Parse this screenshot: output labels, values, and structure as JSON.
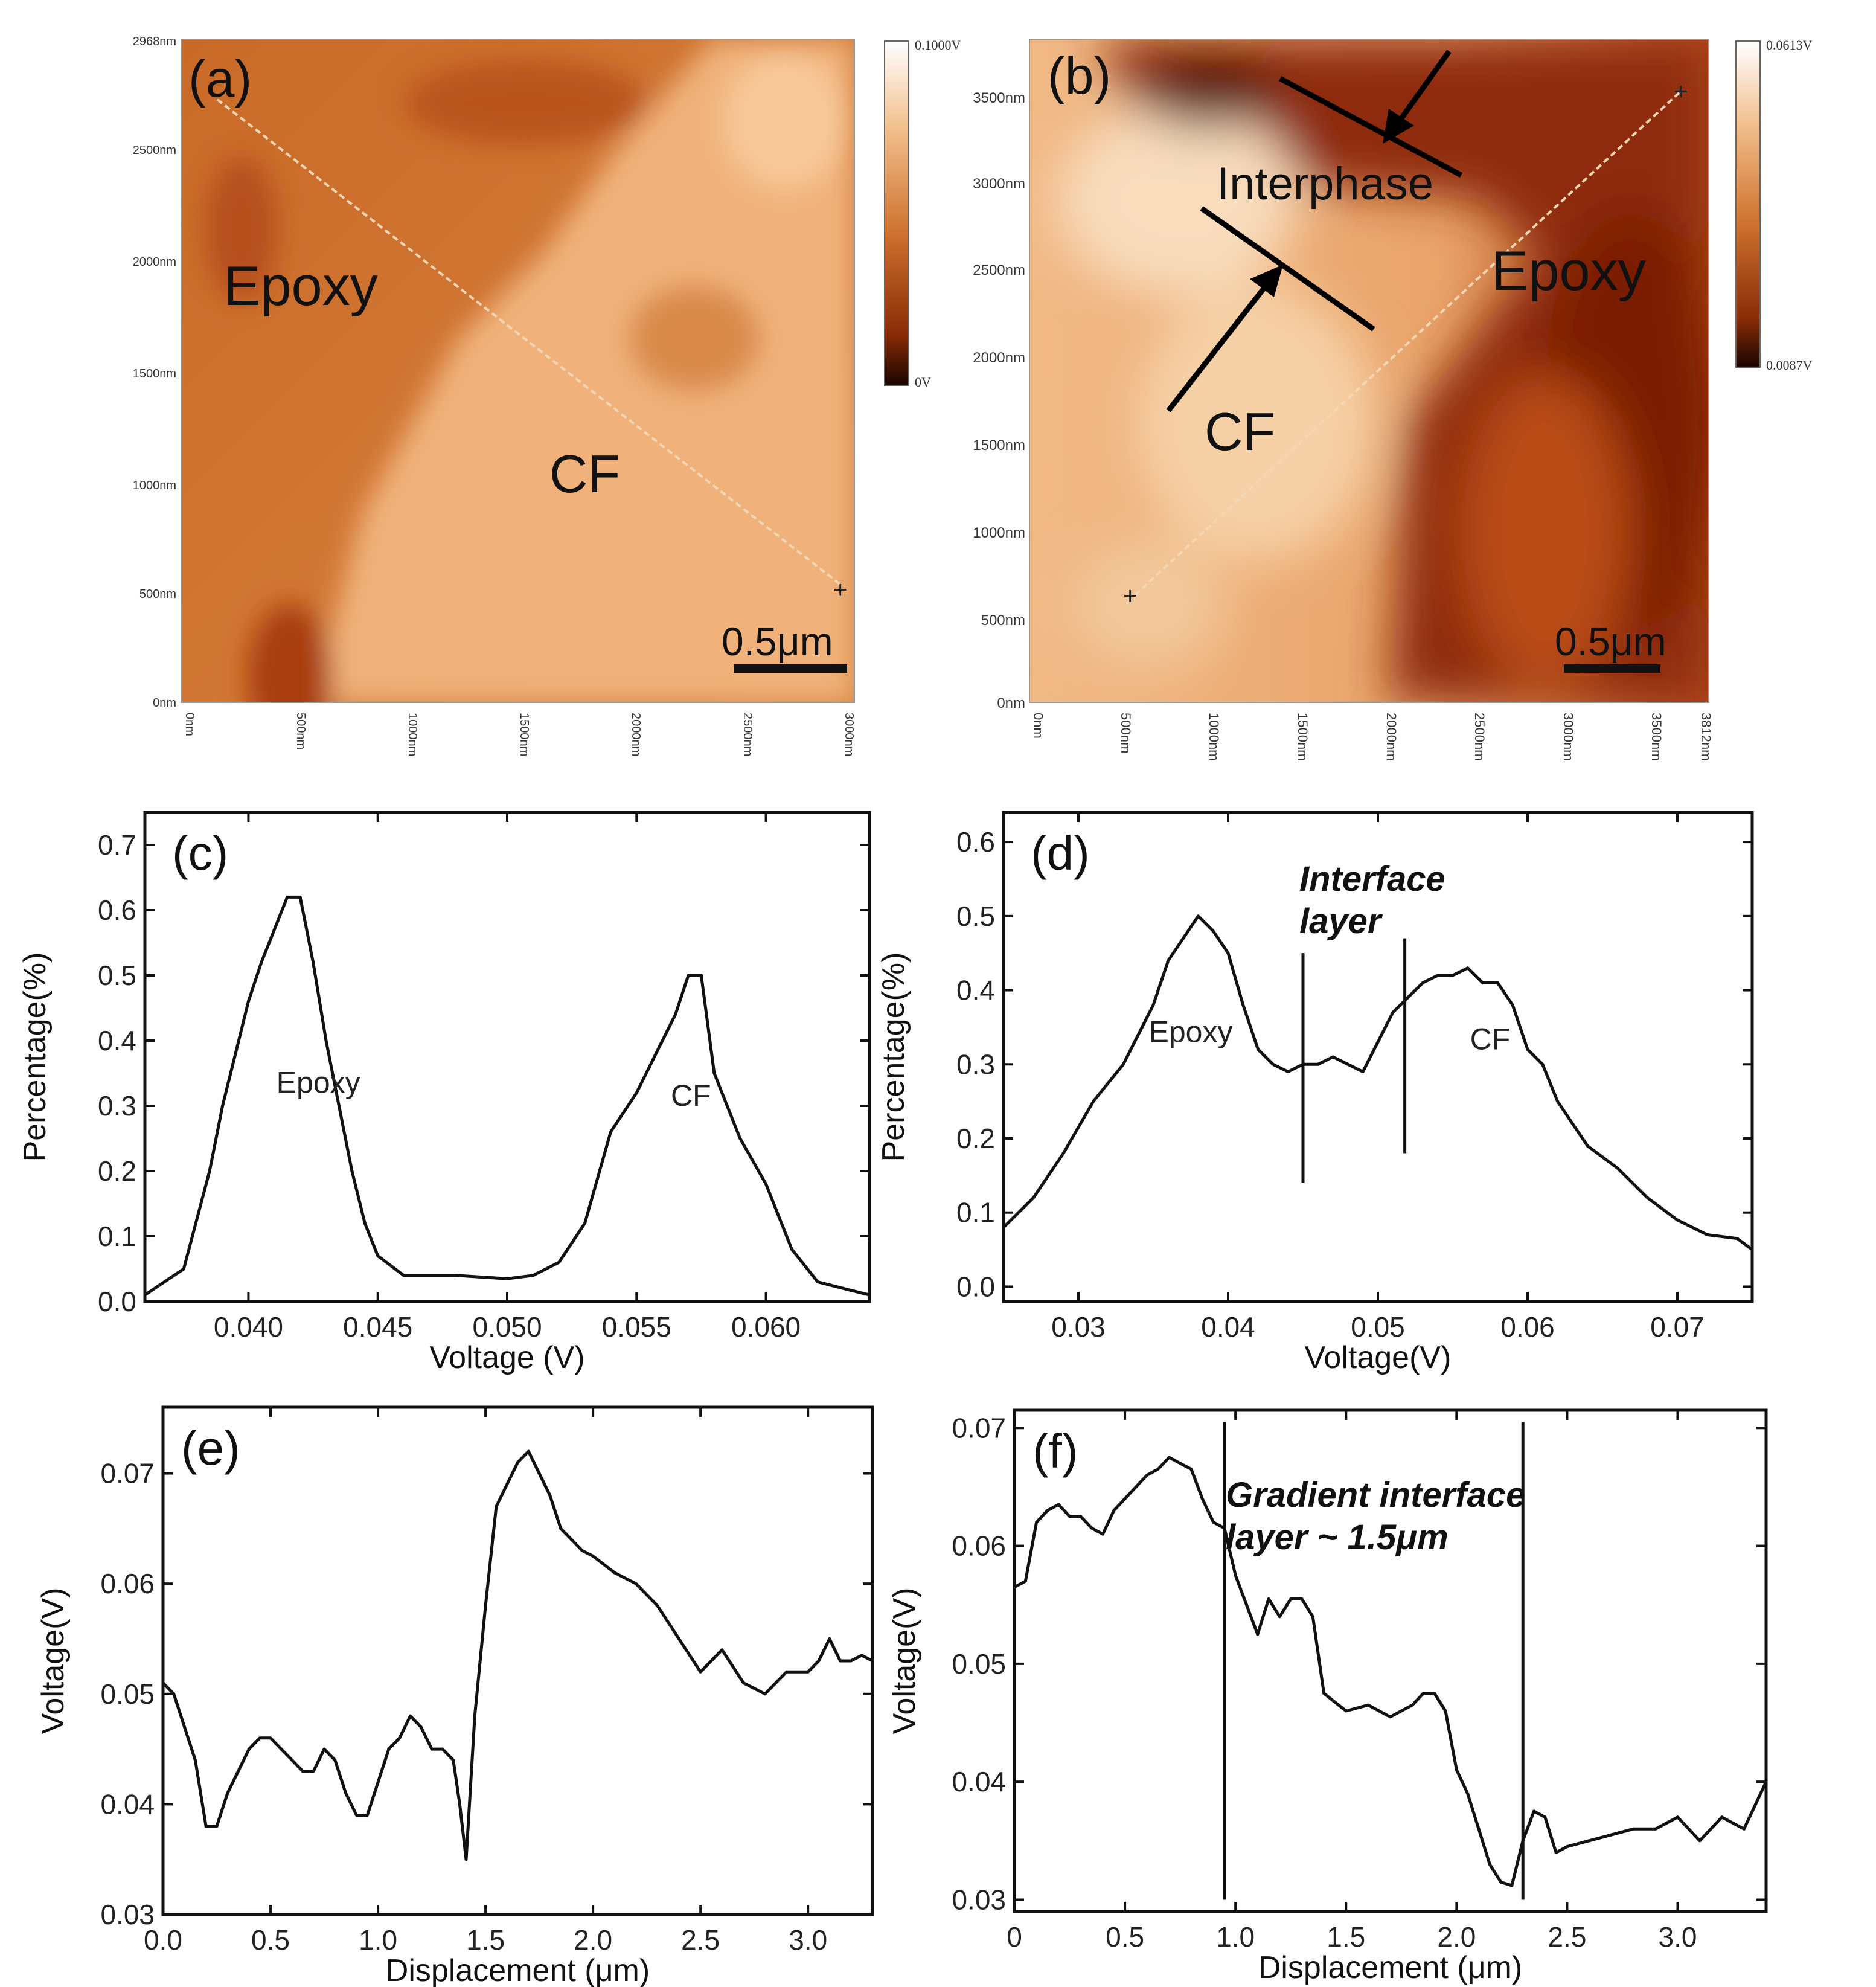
{
  "figure": {
    "panels": {
      "a": {
        "label": "(a)",
        "regions": [
          "Epoxy",
          "CF"
        ],
        "scalebar": "0.5μm",
        "y_ticks": [
          "2968nm",
          "2500nm",
          "2000nm",
          "1500nm",
          "1000nm",
          "500nm",
          "0nm"
        ],
        "x_ticks": [
          "0nm",
          "500nm",
          "1000nm",
          "1500nm",
          "2000nm",
          "2500nm",
          "3000nm"
        ],
        "colorbar": {
          "max": "0.1000V",
          "min": "0V"
        }
      },
      "b": {
        "label": "(b)",
        "regions": [
          "Interphase",
          "Epoxy",
          "CF"
        ],
        "scalebar": "0.5μm",
        "y_ticks": [
          "3500nm",
          "3000nm",
          "2500nm",
          "2000nm",
          "1500nm",
          "1000nm",
          "500nm",
          "0nm"
        ],
        "x_ticks": [
          "0nm",
          "500nm",
          "1000nm",
          "1500nm",
          "2000nm",
          "2500nm",
          "3000nm",
          "3500nm",
          "3812nm"
        ],
        "colorbar": {
          "max": "0.0613V",
          "min": "0.0087V"
        }
      }
    },
    "colors": {
      "light": "#fce8cc",
      "mid": "#d98c4a",
      "dark": "#6e1a02",
      "line": "#111111"
    }
  },
  "chart_data": [
    {
      "id": "c",
      "type": "line",
      "label": "(c)",
      "xlabel": "Voltage (V)",
      "ylabel": "Percentage(%)",
      "xlim": [
        0.036,
        0.064
      ],
      "ylim": [
        0,
        0.75
      ],
      "xticks": [
        0.04,
        0.045,
        0.05,
        0.055,
        0.06
      ],
      "xtick_labels": [
        "0.040",
        "0.045",
        "0.050",
        "0.055",
        "0.060"
      ],
      "yticks": [
        0,
        0.1,
        0.2,
        0.3,
        0.4,
        0.5,
        0.6,
        0.7
      ],
      "ytick_labels": [
        "0.0",
        "0.1",
        "0.2",
        "0.3",
        "0.4",
        "0.5",
        "0.6",
        "0.7"
      ],
      "annotations": [
        {
          "text": "Epoxy",
          "x": 0.0427,
          "y": 0.32
        },
        {
          "text": "CF",
          "x": 0.0571,
          "y": 0.3
        }
      ],
      "vlines": [],
      "vline_labels": [],
      "series": [
        {
          "name": "histogram",
          "x": [
            0.036,
            0.0375,
            0.0385,
            0.039,
            0.0395,
            0.04,
            0.0405,
            0.041,
            0.0415,
            0.042,
            0.0425,
            0.043,
            0.0435,
            0.044,
            0.0445,
            0.045,
            0.046,
            0.048,
            0.05,
            0.051,
            0.052,
            0.053,
            0.054,
            0.055,
            0.0555,
            0.056,
            0.0565,
            0.057,
            0.0575,
            0.058,
            0.0585,
            0.059,
            0.06,
            0.061,
            0.062,
            0.063,
            0.064
          ],
          "y": [
            0.01,
            0.05,
            0.2,
            0.3,
            0.38,
            0.46,
            0.52,
            0.57,
            0.62,
            0.62,
            0.52,
            0.4,
            0.3,
            0.2,
            0.12,
            0.07,
            0.04,
            0.04,
            0.035,
            0.04,
            0.06,
            0.12,
            0.26,
            0.32,
            0.36,
            0.4,
            0.44,
            0.5,
            0.5,
            0.35,
            0.3,
            0.25,
            0.18,
            0.08,
            0.03,
            0.02,
            0.01
          ]
        }
      ]
    },
    {
      "id": "d",
      "type": "line",
      "label": "(d)",
      "xlabel": "Voltage(V)",
      "ylabel": "Percentage(%)",
      "xlim": [
        0.025,
        0.075
      ],
      "ylim": [
        -0.02,
        0.64
      ],
      "xticks": [
        0.03,
        0.04,
        0.05,
        0.06,
        0.07
      ],
      "xtick_labels": [
        "0.03",
        "0.04",
        "0.05",
        "0.06",
        "0.07"
      ],
      "yticks": [
        0,
        0.1,
        0.2,
        0.3,
        0.4,
        0.5,
        0.6
      ],
      "ytick_labels": [
        "0.0",
        "0.1",
        "0.2",
        "0.3",
        "0.4",
        "0.5",
        "0.6"
      ],
      "annotations": [
        {
          "text": "Epoxy",
          "x": 0.0375,
          "y": 0.33
        },
        {
          "text": "CF",
          "x": 0.0575,
          "y": 0.32
        }
      ],
      "vlines": [
        {
          "x": 0.045,
          "y0": 0.14,
          "y1": 0.45
        },
        {
          "x": 0.0518,
          "y0": 0.18,
          "y1": 0.47
        }
      ],
      "vline_labels": [
        "Interface",
        "layer"
      ],
      "series": [
        {
          "name": "histogram",
          "x": [
            0.025,
            0.027,
            0.029,
            0.031,
            0.033,
            0.035,
            0.036,
            0.037,
            0.038,
            0.039,
            0.04,
            0.041,
            0.042,
            0.043,
            0.044,
            0.045,
            0.046,
            0.047,
            0.048,
            0.049,
            0.05,
            0.051,
            0.052,
            0.053,
            0.054,
            0.055,
            0.056,
            0.057,
            0.058,
            0.059,
            0.06,
            0.061,
            0.062,
            0.064,
            0.066,
            0.068,
            0.07,
            0.072,
            0.074,
            0.075
          ],
          "y": [
            0.08,
            0.12,
            0.18,
            0.25,
            0.3,
            0.38,
            0.44,
            0.47,
            0.5,
            0.48,
            0.45,
            0.38,
            0.32,
            0.3,
            0.29,
            0.3,
            0.3,
            0.31,
            0.3,
            0.29,
            0.33,
            0.37,
            0.39,
            0.41,
            0.42,
            0.42,
            0.43,
            0.41,
            0.41,
            0.38,
            0.32,
            0.3,
            0.25,
            0.19,
            0.16,
            0.12,
            0.09,
            0.07,
            0.065,
            0.05
          ]
        }
      ]
    },
    {
      "id": "e",
      "type": "line",
      "label": "(e)",
      "xlabel": "Displacement (μm)",
      "ylabel": "Voltage(V)",
      "xlim": [
        0,
        3.3
      ],
      "ylim": [
        0.03,
        0.076
      ],
      "xticks": [
        0,
        0.5,
        1.0,
        1.5,
        2.0,
        2.5,
        3.0
      ],
      "xtick_labels": [
        "0.0",
        "0.5",
        "1.0",
        "1.5",
        "2.0",
        "2.5",
        "3.0"
      ],
      "yticks": [
        0.03,
        0.04,
        0.05,
        0.06,
        0.07
      ],
      "ytick_labels": [
        "0.03",
        "0.04",
        "0.05",
        "0.06",
        "0.07"
      ],
      "annotations": [],
      "vlines": [],
      "vline_labels": [],
      "series": [
        {
          "name": "profile",
          "x": [
            0,
            0.05,
            0.1,
            0.15,
            0.2,
            0.25,
            0.3,
            0.35,
            0.4,
            0.45,
            0.5,
            0.55,
            0.6,
            0.65,
            0.7,
            0.75,
            0.8,
            0.85,
            0.9,
            0.95,
            1.0,
            1.05,
            1.1,
            1.15,
            1.2,
            1.25,
            1.3,
            1.35,
            1.38,
            1.41,
            1.45,
            1.5,
            1.55,
            1.6,
            1.65,
            1.7,
            1.75,
            1.8,
            1.85,
            1.9,
            1.95,
            2.0,
            2.1,
            2.2,
            2.3,
            2.4,
            2.5,
            2.6,
            2.7,
            2.8,
            2.9,
            3.0,
            3.05,
            3.1,
            3.15,
            3.2,
            3.25,
            3.3
          ],
          "y": [
            0.051,
            0.05,
            0.047,
            0.044,
            0.038,
            0.038,
            0.041,
            0.043,
            0.045,
            0.046,
            0.046,
            0.045,
            0.044,
            0.043,
            0.043,
            0.045,
            0.044,
            0.041,
            0.039,
            0.039,
            0.042,
            0.045,
            0.046,
            0.048,
            0.047,
            0.045,
            0.045,
            0.044,
            0.04,
            0.035,
            0.048,
            0.058,
            0.067,
            0.069,
            0.071,
            0.072,
            0.07,
            0.068,
            0.065,
            0.064,
            0.063,
            0.0625,
            0.061,
            0.06,
            0.058,
            0.055,
            0.052,
            0.054,
            0.051,
            0.05,
            0.052,
            0.052,
            0.053,
            0.055,
            0.053,
            0.053,
            0.0535,
            0.053
          ]
        }
      ]
    },
    {
      "id": "f",
      "type": "line",
      "label": "(f)",
      "xlabel": "Displacement (μm)",
      "ylabel": "Voltage(V)",
      "xlim": [
        0,
        3.4
      ],
      "ylim": [
        0.029,
        0.0715
      ],
      "xticks": [
        0,
        0.5,
        1.0,
        1.5,
        2.0,
        2.5,
        3.0
      ],
      "xtick_labels": [
        "0",
        "0.5",
        "1.0",
        "1.5",
        "2.0",
        "2.5",
        "3.0"
      ],
      "yticks": [
        0.03,
        0.04,
        0.05,
        0.06,
        0.07
      ],
      "ytick_labels": [
        "0.03",
        "0.04",
        "0.05",
        "0.06",
        "0.07"
      ],
      "annotations": [],
      "vlines": [
        {
          "x": 0.95,
          "y0": 0.03,
          "y1": 0.0705
        },
        {
          "x": 2.3,
          "y0": 0.03,
          "y1": 0.0705
        }
      ],
      "vline_labels": [
        "Gradient interface",
        "layer   ~ 1.5μm"
      ],
      "series": [
        {
          "name": "profile",
          "x": [
            0,
            0.05,
            0.1,
            0.15,
            0.2,
            0.25,
            0.3,
            0.35,
            0.4,
            0.45,
            0.5,
            0.55,
            0.6,
            0.65,
            0.7,
            0.75,
            0.8,
            0.85,
            0.9,
            0.95,
            1.0,
            1.05,
            1.1,
            1.15,
            1.2,
            1.25,
            1.3,
            1.35,
            1.4,
            1.5,
            1.6,
            1.7,
            1.8,
            1.85,
            1.9,
            1.95,
            2.0,
            2.05,
            2.1,
            2.15,
            2.2,
            2.25,
            2.3,
            2.35,
            2.4,
            2.45,
            2.5,
            2.6,
            2.7,
            2.8,
            2.9,
            3.0,
            3.1,
            3.2,
            3.3,
            3.4
          ],
          "y": [
            0.0565,
            0.057,
            0.062,
            0.063,
            0.0635,
            0.0625,
            0.0625,
            0.0615,
            0.061,
            0.063,
            0.064,
            0.065,
            0.066,
            0.0665,
            0.0675,
            0.067,
            0.0665,
            0.064,
            0.062,
            0.0615,
            0.0575,
            0.055,
            0.0525,
            0.0555,
            0.054,
            0.0555,
            0.0555,
            0.054,
            0.0475,
            0.046,
            0.0465,
            0.0455,
            0.0465,
            0.0475,
            0.0475,
            0.046,
            0.041,
            0.039,
            0.036,
            0.033,
            0.0315,
            0.0312,
            0.035,
            0.0375,
            0.037,
            0.034,
            0.0345,
            0.035,
            0.0355,
            0.036,
            0.036,
            0.037,
            0.035,
            0.037,
            0.036,
            0.04
          ]
        }
      ]
    }
  ]
}
